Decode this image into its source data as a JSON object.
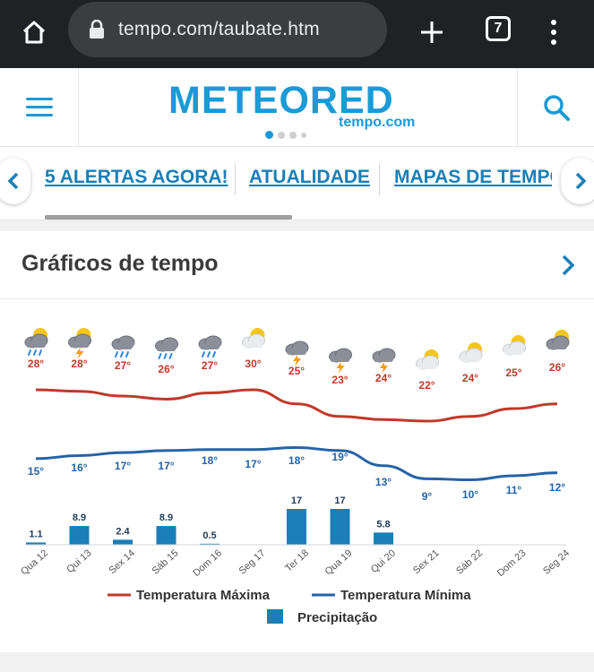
{
  "browser": {
    "url": "tempo.com/taubate.htm",
    "tab_count": "7",
    "icons": [
      "home-icon",
      "lock-icon",
      "plus-icon",
      "tabs-icon",
      "more-vert-icon"
    ]
  },
  "site": {
    "logo": "METEORED",
    "logo_sub": "tempo.com",
    "brand_color": "#1a9ad6"
  },
  "nav": {
    "items": [
      "5 ALERTAS AGORA!",
      "ATUALIDADE",
      "MAPAS DE TEMPO"
    ]
  },
  "section": {
    "title": "Gráficos de tempo"
  },
  "chart_data": {
    "type": "line",
    "days": [
      "Qua 12",
      "Qui 13",
      "Sex 14",
      "Sáb 15",
      "Dom 16",
      "Seg 17",
      "Ter 18",
      "Qua 19",
      "Qui 20",
      "Sex 21",
      "Sáb 22",
      "Dom 23",
      "Seg 24"
    ],
    "weather_icons": [
      "rain-cloud-sun",
      "storm-sun",
      "rain-cloud",
      "rain-cloud",
      "rain-cloud",
      "partly-cloudy",
      "storm-cloud",
      "storm-cloud",
      "storm-cloud",
      "partly-cloudy",
      "partly-cloudy",
      "partly-cloudy",
      "cloudy-sun"
    ],
    "series": [
      {
        "name": "Temperatura Máxima",
        "color": "#c0392b",
        "values": [
          28,
          28,
          27,
          26,
          27,
          30,
          25,
          23,
          24,
          22,
          24,
          25,
          26
        ]
      },
      {
        "name": "Temperatura Mínima",
        "color": "#2563a8",
        "values": [
          15,
          16,
          17,
          17,
          18,
          17,
          18,
          19,
          13,
          9,
          10,
          11,
          12
        ]
      }
    ],
    "bars": {
      "name": "Precipitação",
      "color": "#1a7fb8",
      "values": [
        1.1,
        8.9,
        2.4,
        8.9,
        0.5,
        0,
        17,
        17,
        5.8,
        0,
        0,
        0,
        0
      ],
      "labels": [
        "1.1",
        "8.9",
        "2.4",
        "8.9",
        "0.5",
        "",
        "17",
        "17",
        "5.8",
        "",
        "",
        "",
        ""
      ]
    },
    "max_color": "#c0392b",
    "min_color": "#2563a8",
    "legend": [
      {
        "label": "Temperatura Máxima",
        "kind": "line",
        "color": "#c0392b"
      },
      {
        "label": "Temperatura Mínima",
        "kind": "line",
        "color": "#2563a8"
      },
      {
        "label": "Precipitação",
        "kind": "box",
        "color": "#1a7fb8"
      }
    ],
    "legend_position": "bottom"
  }
}
